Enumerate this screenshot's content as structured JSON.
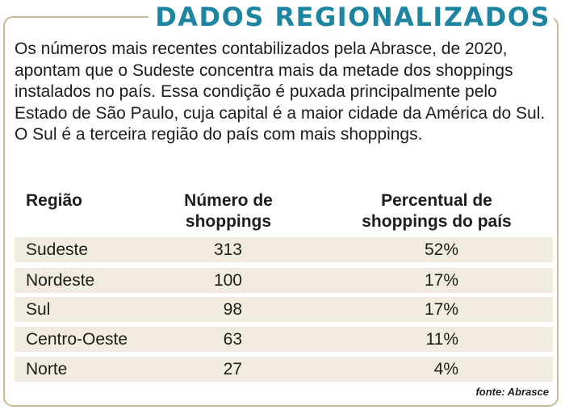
{
  "title": "DADOS REGIONALIZADOS",
  "intro": "Os números mais recentes contabilizados pela Abrasce, de 2020, apontam que o Sudeste concentra mais da metade dos shoppings instalados no país. Essa condição é puxada principalmente pelo Estado de São Paulo, cuja capital é a maior cidade da América do Sul. O Sul é a terceira região do país com mais shoppings.",
  "table": {
    "headers": {
      "region": "Região",
      "count": "Número de shoppings",
      "percent": "Percentual de shoppings do país"
    },
    "rows": [
      {
        "region": "Sudeste",
        "count": "313",
        "percent": "52%"
      },
      {
        "region": "Nordeste",
        "count": "100",
        "percent": "17%"
      },
      {
        "region": "Sul",
        "count": "98",
        "percent": "17%"
      },
      {
        "region": "Centro-Oeste",
        "count": "63",
        "percent": "11%"
      },
      {
        "region": "Norte",
        "count": "27",
        "percent": "4%"
      }
    ]
  },
  "source": "fonte: Abrasce",
  "colors": {
    "title": "#1d84a1",
    "frame": "#c9b995",
    "row_background": "#f1ecdf"
  }
}
